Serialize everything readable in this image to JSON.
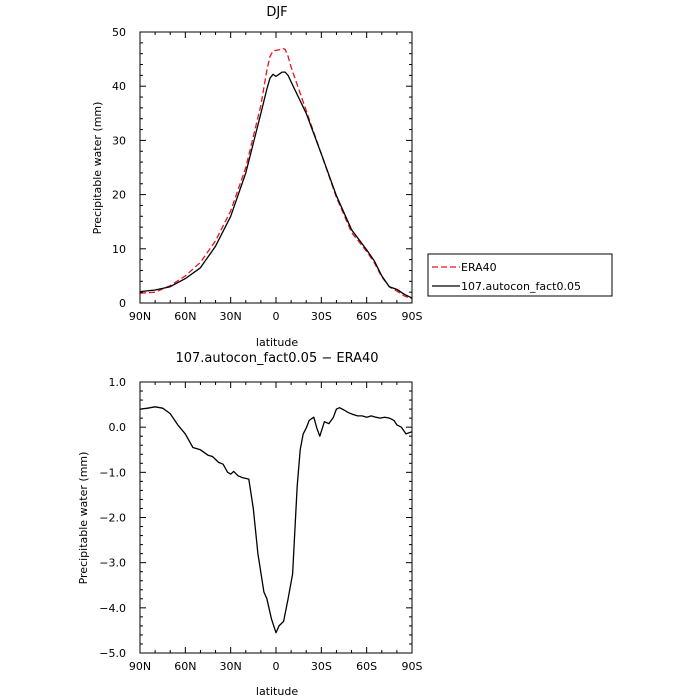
{
  "chart_data": [
    {
      "type": "line",
      "title": "DJF",
      "xlabel": "latitude",
      "ylabel": "Precipitable water (mm)",
      "x_ticklabels": [
        "90N",
        "60N",
        "30N",
        "0",
        "30S",
        "60S",
        "90S"
      ],
      "y_ticklabels": [
        "0",
        "10",
        "20",
        "30",
        "40",
        "50"
      ],
      "xlim": [
        90,
        -90
      ],
      "ylim": [
        0,
        50
      ],
      "legend_position": "right",
      "series": [
        {
          "name": "ERA40",
          "color": "#e8141e",
          "dash": "dashed",
          "x": [
            90,
            80,
            70,
            60,
            50,
            40,
            30,
            20,
            10,
            6,
            4,
            2,
            0,
            -2,
            -4,
            -6,
            -8,
            -10,
            -20,
            -30,
            -40,
            -50,
            -60,
            -65,
            -70,
            -75,
            -80,
            -85,
            -90
          ],
          "y": [
            1.8,
            2.0,
            3.2,
            5.0,
            7.5,
            11.5,
            17.0,
            25.0,
            36.5,
            43.0,
            45.5,
            46.5,
            46.6,
            46.7,
            47.0,
            46.8,
            45.5,
            43.5,
            35.5,
            27.5,
            19.5,
            13.0,
            9.5,
            7.5,
            4.8,
            3.0,
            2.2,
            1.3,
            0.8
          ]
        },
        {
          "name": "107.autocon_fact0.05",
          "color": "#000000",
          "dash": "solid",
          "x": [
            90,
            80,
            70,
            60,
            50,
            40,
            30,
            20,
            10,
            6,
            4,
            2,
            0,
            -2,
            -4,
            -6,
            -8,
            -10,
            -20,
            -30,
            -40,
            -50,
            -60,
            -65,
            -70,
            -75,
            -80,
            -85,
            -90
          ],
          "y": [
            2.1,
            2.4,
            3.0,
            4.5,
            6.5,
            10.5,
            16.0,
            24.0,
            35.0,
            39.5,
            41.5,
            42.2,
            41.8,
            42.2,
            42.6,
            42.6,
            42.0,
            40.8,
            35.0,
            27.5,
            19.8,
            13.5,
            9.8,
            7.8,
            5.0,
            3.0,
            2.5,
            1.6,
            0.9
          ]
        }
      ]
    },
    {
      "type": "line",
      "title": "107.autocon_fact0.05 − ERA40",
      "xlabel": "latitude",
      "ylabel": "Precipitable water (mm)",
      "x_ticklabels": [
        "90N",
        "60N",
        "30N",
        "0",
        "30S",
        "60S",
        "90S"
      ],
      "y_ticklabels": [
        "1.0",
        "0.0",
        "−1.0",
        "−2.0",
        "−3.0",
        "−4.0",
        "−5.0"
      ],
      "xlim": [
        90,
        -90
      ],
      "ylim": [
        -5,
        1
      ],
      "series": [
        {
          "color": "#000000",
          "x": [
            90,
            85,
            80,
            75,
            70,
            65,
            60,
            55,
            50,
            45,
            42,
            38,
            35,
            32,
            30,
            28,
            25,
            22,
            18,
            15,
            12,
            8,
            6,
            3,
            1,
            0,
            -2,
            -5,
            -8,
            -11,
            -14,
            -16,
            -18,
            -20,
            -22,
            -25,
            -27,
            -29,
            -32,
            -35,
            -38,
            -40,
            -42,
            -45,
            -48,
            -51,
            -54,
            -57,
            -60,
            -63,
            -66,
            -69,
            -72,
            -75,
            -78,
            -80,
            -83,
            -86,
            -90
          ],
          "y": [
            0.4,
            0.42,
            0.45,
            0.42,
            0.3,
            0.05,
            -0.15,
            -0.45,
            -0.5,
            -0.62,
            -0.65,
            -0.78,
            -0.82,
            -1.0,
            -1.04,
            -0.98,
            -1.08,
            -1.12,
            -1.15,
            -1.8,
            -2.8,
            -3.65,
            -3.8,
            -4.25,
            -4.45,
            -4.55,
            -4.4,
            -4.3,
            -3.8,
            -3.25,
            -1.3,
            -0.5,
            -0.15,
            -0.02,
            0.15,
            0.22,
            -0.02,
            -0.2,
            0.12,
            0.08,
            0.22,
            0.4,
            0.43,
            0.38,
            0.32,
            0.28,
            0.25,
            0.25,
            0.22,
            0.25,
            0.22,
            0.2,
            0.22,
            0.2,
            0.15,
            0.05,
            0.0,
            -0.15,
            -0.1
          ]
        }
      ]
    }
  ]
}
